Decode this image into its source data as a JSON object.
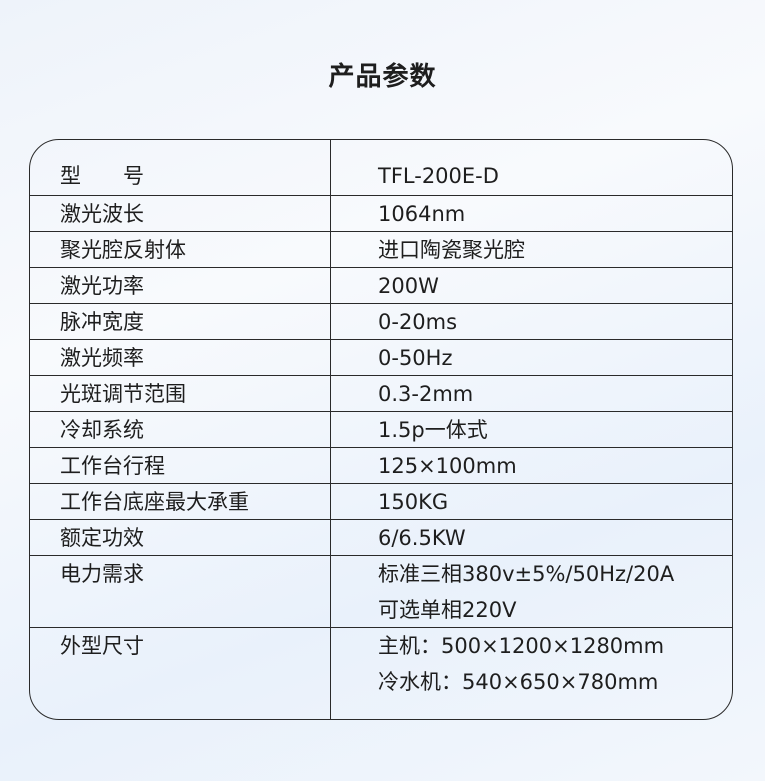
{
  "title": "产品参数",
  "rows": [
    {
      "label": "型　　号",
      "values": [
        "TFL-200E-D"
      ]
    },
    {
      "label": "激光波长",
      "values": [
        "1064nm"
      ]
    },
    {
      "label": "聚光腔反射体",
      "values": [
        "进口陶瓷聚光腔"
      ]
    },
    {
      "label": "激光功率",
      "values": [
        "200W"
      ]
    },
    {
      "label": "脉冲宽度",
      "values": [
        "0-20ms"
      ]
    },
    {
      "label": "激光频率",
      "values": [
        "0-50Hz"
      ]
    },
    {
      "label": "光斑调节范围",
      "values": [
        "0.3-2mm"
      ]
    },
    {
      "label": "冷却系统",
      "values": [
        "1.5p一体式"
      ]
    },
    {
      "label": "工作台行程",
      "values": [
        "125×100mm"
      ]
    },
    {
      "label": "工作台底座最大承重",
      "values": [
        "150KG"
      ]
    },
    {
      "label": "额定功效",
      "values": [
        "6/6.5KW"
      ]
    },
    {
      "label": "电力需求",
      "values": [
        "标准三相380v±5%/50Hz/20A",
        "可选单相220V"
      ]
    },
    {
      "label": "外型尺寸",
      "values": [
        "主机：500×1200×1280mm",
        "冷水机：540×650×780mm"
      ]
    }
  ]
}
